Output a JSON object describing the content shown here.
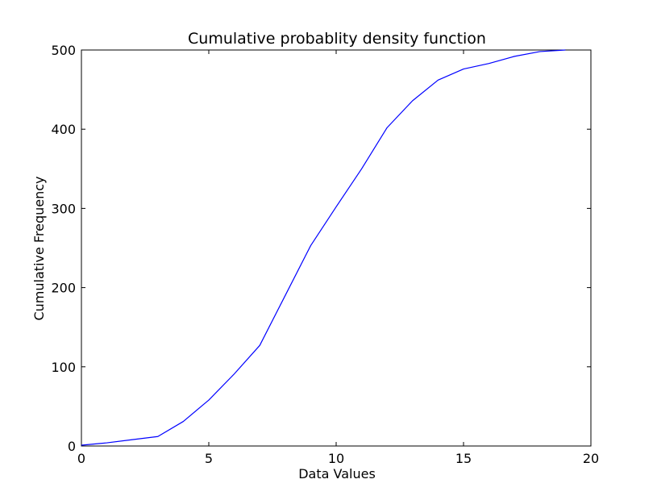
{
  "chart_data": {
    "type": "line",
    "title": "Cumulative probablity density function",
    "xlabel": "Data Values",
    "ylabel": "Cumulative Frequency",
    "xlim": [
      0,
      20
    ],
    "ylim": [
      0,
      500
    ],
    "x_ticks": [
      0,
      5,
      10,
      15,
      20
    ],
    "y_ticks": [
      0,
      100,
      200,
      300,
      400,
      500
    ],
    "grid": false,
    "series": [
      {
        "color": "#0000ff",
        "x": [
          0,
          1,
          2,
          3,
          4,
          5,
          6,
          7,
          8,
          9,
          10,
          11,
          12,
          13,
          14,
          15,
          16,
          17,
          18,
          19
        ],
        "values": [
          1,
          4,
          8,
          12,
          31,
          58,
          91,
          127,
          190,
          253,
          302,
          350,
          402,
          436,
          462,
          476,
          483,
          492,
          498,
          500
        ]
      }
    ]
  }
}
